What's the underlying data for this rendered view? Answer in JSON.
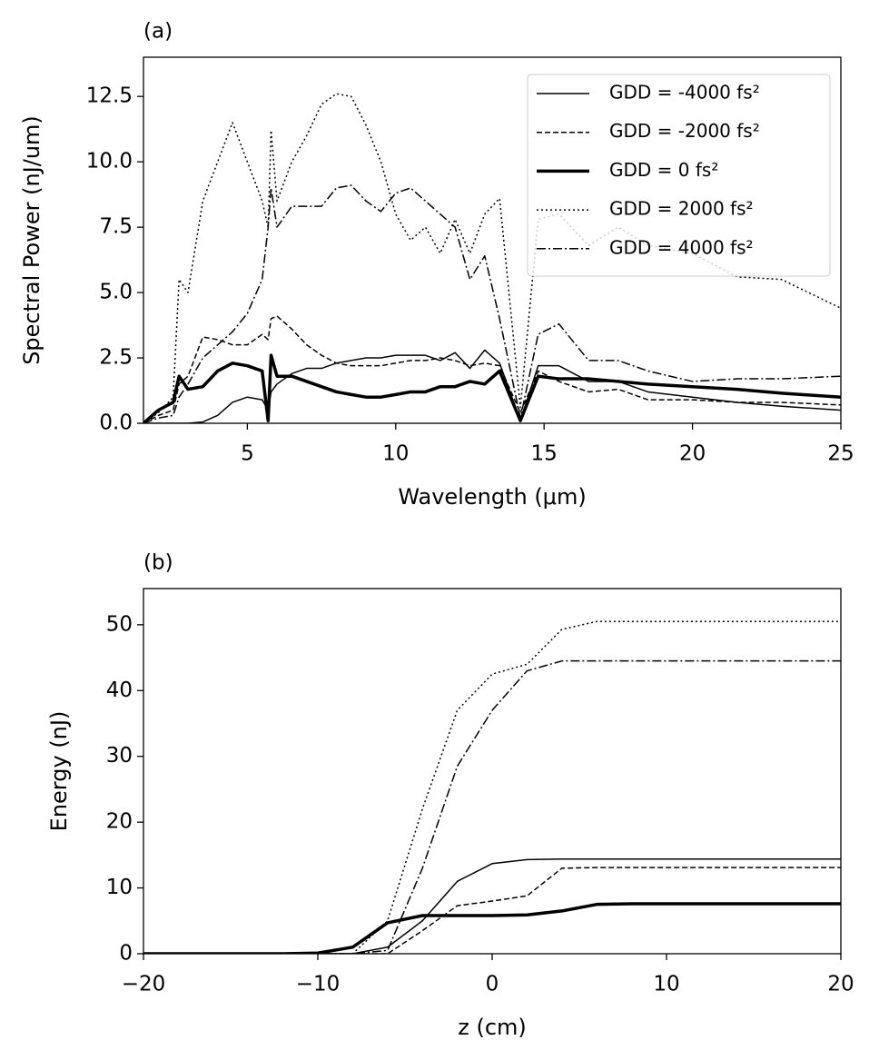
{
  "chart_data": [
    {
      "type": "line",
      "title": "(a)",
      "x_label": "Wavelength (μm)",
      "y_label": "Spectral Power (nJ/um)",
      "x": [
        1.5,
        2.0,
        2.5,
        2.7,
        3.0,
        3.5,
        4.0,
        4.5,
        5.0,
        5.5,
        5.7,
        5.8,
        6.0,
        6.5,
        7.0,
        7.5,
        8.0,
        8.5,
        9.0,
        9.5,
        10.0,
        10.5,
        11.0,
        11.5,
        12.0,
        12.5,
        13.0,
        13.5,
        14.2,
        14.8,
        15.5,
        16.5,
        17.5,
        18.5,
        20.0,
        21.5,
        23.0,
        25.0
      ],
      "series": [
        {
          "name": "GDD = -4000 fs²",
          "color": "#000000",
          "linestyle": "solid",
          "linewidth": 1.5,
          "values": [
            0,
            0,
            0,
            0,
            0,
            0.05,
            0.3,
            0.8,
            1.0,
            0.9,
            0.5,
            1.2,
            1.5,
            1.9,
            2.1,
            2.1,
            2.3,
            2.4,
            2.5,
            2.5,
            2.6,
            2.6,
            2.6,
            2.4,
            2.7,
            2.1,
            2.8,
            2.3,
            0.1,
            2.2,
            2.2,
            1.6,
            1.6,
            1.2,
            1.0,
            0.8,
            0.65,
            0.5
          ]
        },
        {
          "name": "GDD = -2000 fs²",
          "color": "#000000",
          "linestyle": "dashed",
          "linewidth": 1.5,
          "values": [
            0,
            0.3,
            0.5,
            1.5,
            1.8,
            3.3,
            3.2,
            3.0,
            3.0,
            3.4,
            3.2,
            4.0,
            4.1,
            3.6,
            3.0,
            2.6,
            2.3,
            2.2,
            2.2,
            2.2,
            2.3,
            2.4,
            2.4,
            2.5,
            2.4,
            2.2,
            2.3,
            2.2,
            0.4,
            2.0,
            1.6,
            1.2,
            1.3,
            0.9,
            0.9,
            0.8,
            0.8,
            0.7
          ]
        },
        {
          "name": "GDD = 0 fs²",
          "color": "#000000",
          "linestyle": "solid",
          "linewidth": 3.5,
          "values": [
            0,
            0.5,
            0.8,
            1.8,
            1.3,
            1.4,
            2.0,
            2.3,
            2.2,
            2.0,
            0.1,
            2.6,
            1.8,
            1.8,
            1.6,
            1.4,
            1.2,
            1.1,
            1.0,
            1.0,
            1.1,
            1.2,
            1.2,
            1.4,
            1.4,
            1.6,
            1.5,
            2.0,
            0.1,
            1.8,
            1.7,
            1.7,
            1.6,
            1.5,
            1.4,
            1.3,
            1.15,
            1.0
          ]
        },
        {
          "name": "GDD = 2000 fs²",
          "color": "#000000",
          "linestyle": "dotted",
          "linewidth": 1.5,
          "values": [
            0,
            0.4,
            1.0,
            5.5,
            5.0,
            8.5,
            10.0,
            11.5,
            10.0,
            8.5,
            7.5,
            11.2,
            8.5,
            10.0,
            11.0,
            12.2,
            12.6,
            12.5,
            11.4,
            10.0,
            8.0,
            7.0,
            7.5,
            6.5,
            7.8,
            6.5,
            8.0,
            8.6,
            0.6,
            7.8,
            8.0,
            6.8,
            7.5,
            6.8,
            6.5,
            5.6,
            5.5,
            4.4
          ]
        },
        {
          "name": "GDD = 4000 fs²",
          "color": "#000000",
          "linestyle": "dashdot",
          "linewidth": 1.5,
          "values": [
            0,
            0.2,
            0.3,
            1.0,
            1.5,
            2.5,
            3.0,
            3.5,
            4.2,
            5.5,
            7.5,
            9.0,
            7.5,
            8.3,
            8.3,
            8.3,
            9.0,
            9.1,
            8.5,
            8.1,
            8.8,
            9.0,
            8.5,
            8.0,
            7.5,
            5.5,
            6.4,
            4.0,
            0.2,
            3.4,
            3.8,
            2.4,
            2.4,
            2.0,
            1.6,
            1.7,
            1.7,
            1.8
          ]
        }
      ],
      "xlim": [
        1.5,
        25
      ],
      "xticks": [
        5,
        10,
        15,
        20,
        25
      ],
      "ylim": [
        0,
        14
      ],
      "yticks": [
        {
          "value": 0,
          "label": "0.0"
        },
        2.5,
        {
          "value": 5,
          "label": "5.0"
        },
        7.5,
        {
          "value": 10,
          "label": "10.0"
        },
        12.5
      ],
      "legend": "upper right"
    },
    {
      "type": "line",
      "title": "(b)",
      "x_label": "z (cm)",
      "y_label": "Energy (nJ)",
      "x": [
        -20,
        -18,
        -16,
        -14,
        -12,
        -10,
        -8,
        -6,
        -4,
        -2,
        0,
        2,
        4,
        6,
        8,
        10,
        12,
        14,
        16,
        18,
        20
      ],
      "series": [
        {
          "color": "#000000",
          "linestyle": "solid",
          "linewidth": 1.5,
          "values": [
            0,
            0,
            0,
            0,
            0,
            0,
            0,
            1,
            5,
            11,
            13.7,
            14.3,
            14.4,
            14.4,
            14.4,
            14.4,
            14.4,
            14.4,
            14.4,
            14.4,
            14.4
          ]
        },
        {
          "color": "#000000",
          "linestyle": "dashed",
          "linewidth": 1.5,
          "values": [
            0,
            0,
            0,
            0,
            0,
            0,
            0,
            0,
            3.5,
            7.3,
            8,
            8.8,
            13,
            13.1,
            13.1,
            13.1,
            13.1,
            13.1,
            13.1,
            13.1,
            13.1
          ]
        },
        {
          "color": "#000000",
          "linestyle": "solid",
          "linewidth": 3.5,
          "values": [
            0,
            0,
            0,
            0,
            0,
            0.1,
            1,
            4.7,
            5.8,
            5.8,
            5.8,
            5.9,
            6.5,
            7.5,
            7.6,
            7.6,
            7.6,
            7.6,
            7.6,
            7.6,
            7.6
          ]
        },
        {
          "color": "#000000",
          "linestyle": "dotted",
          "linewidth": 1.5,
          "values": [
            0,
            0,
            0,
            0,
            0,
            0,
            0,
            5,
            22,
            37,
            42.5,
            44,
            49.3,
            50.5,
            50.5,
            50.5,
            50.5,
            50.5,
            50.5,
            50.5,
            50.5
          ]
        },
        {
          "color": "#000000",
          "linestyle": "dashdot",
          "linewidth": 1.5,
          "values": [
            0,
            0,
            0,
            0,
            0,
            0,
            0,
            0.5,
            13,
            28.5,
            37,
            43,
            44.5,
            44.5,
            44.5,
            44.5,
            44.5,
            44.5,
            44.5,
            44.5,
            44.5
          ]
        }
      ],
      "xlim": [
        -20,
        20
      ],
      "xticks": [
        {
          "value": -20,
          "label": "−20"
        },
        {
          "value": -10,
          "label": "−10"
        },
        0,
        10,
        20
      ],
      "ylim": [
        0,
        55.5
      ],
      "yticks": [
        0,
        10,
        20,
        30,
        40,
        50
      ]
    }
  ]
}
